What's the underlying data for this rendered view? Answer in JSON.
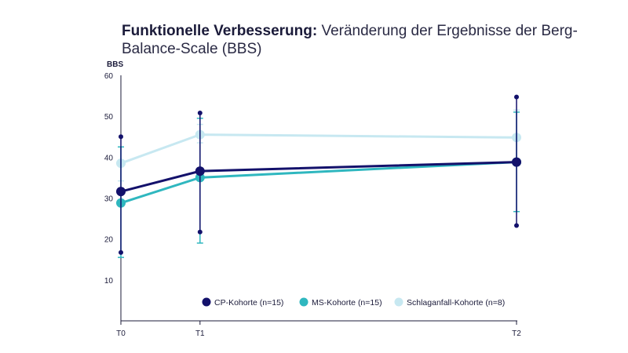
{
  "title": {
    "bold": "Funktionelle Verbesserung:",
    "rest": " Veränderung der Ergebnisse der Berg-Balance-Scale (BBS)"
  },
  "chart_data": {
    "type": "line",
    "title": "Funktionelle Verbesserung: Veränderung der Ergebnisse der Berg-Balance-Scale (BBS)",
    "ylabel": "BBS",
    "xlabel": "",
    "ylim": [
      0,
      60
    ],
    "yticks": [
      10,
      20,
      30,
      40,
      50,
      60
    ],
    "grid": false,
    "legend_position": "bottom-right",
    "x": [
      "T0",
      "T1",
      "T2"
    ],
    "x_positions": [
      0,
      1,
      5
    ],
    "series": [
      {
        "name": "CP-Kohorte (n=15)",
        "color": "#13116b",
        "values": [
          31.6,
          36.6,
          38.8
        ],
        "err_low": [
          16.7,
          21.7,
          23.3
        ],
        "err_high": [
          45.0,
          50.8,
          54.7
        ]
      },
      {
        "name": "MS-Kohorte (n=15)",
        "color": "#2fb7bf",
        "values": [
          28.8,
          35.0,
          38.8
        ],
        "err_low": [
          15.5,
          19.0,
          26.7
        ],
        "err_high": [
          42.5,
          49.5,
          51.0
        ]
      },
      {
        "name": "Schlaganfall-Kohorte (n=8)",
        "color": "#c7e8f1",
        "values": [
          38.5,
          45.5,
          44.8
        ],
        "err_low": [
          34.2,
          43.5,
          38.0
        ],
        "err_high": [
          42.5,
          48.0,
          51.5
        ]
      }
    ]
  }
}
